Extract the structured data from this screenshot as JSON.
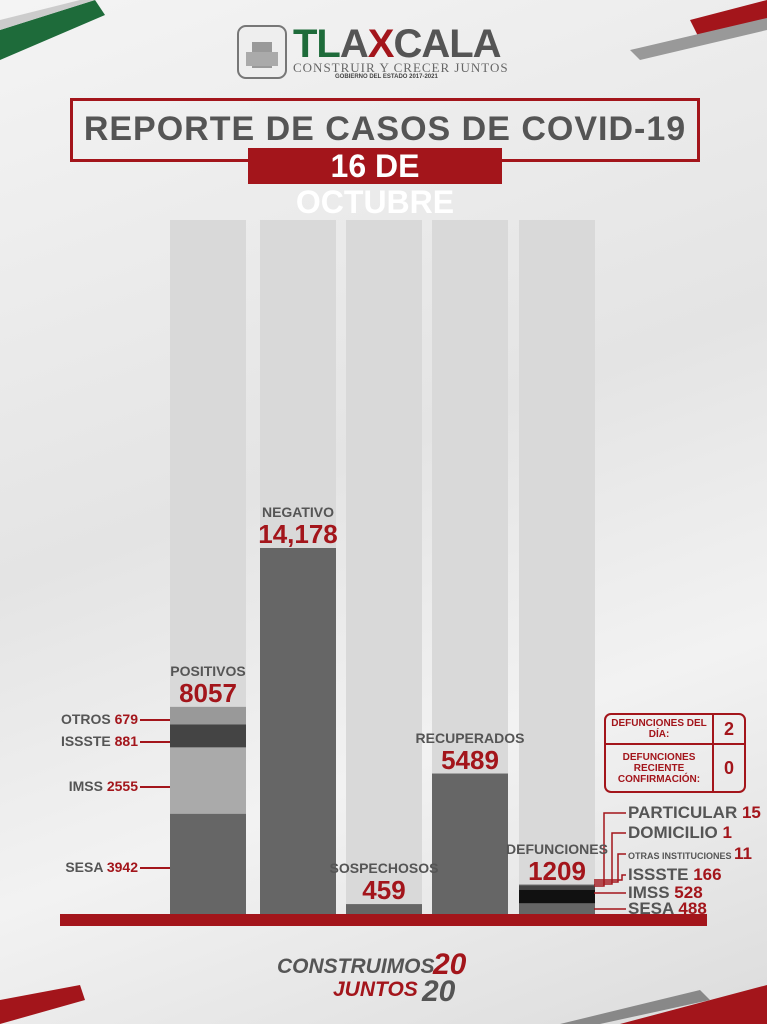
{
  "header": {
    "logo_text": "TLAXCALA",
    "logo_sub": "CONSTRUIR Y CRECER JUNTOS",
    "logo_gov": "GOBIERNO DEL ESTADO 2017-2021",
    "title": "REPORTE DE CASOS DE COVID-19",
    "date": "16 DE OCTUBRE"
  },
  "colors": {
    "accent": "#a3151b",
    "bar": "#666666",
    "track": "#d9d9d9",
    "green": "#1e6b3a"
  },
  "chart_data": {
    "type": "bar",
    "categories": [
      "POSITIVOS",
      "NEGATIVO",
      "SOSPECHOSOS",
      "RECUPERADOS",
      "DEFUNCIONES"
    ],
    "values": [
      8057,
      14178,
      459,
      5489,
      1209
    ],
    "value_labels": [
      "8057",
      "14,178",
      "459",
      "5489",
      "1209"
    ],
    "stacks": {
      "POSITIVOS": [
        {
          "name": "SESA",
          "value": 3942,
          "color": "#666666"
        },
        {
          "name": "IMSS",
          "value": 2555,
          "color": "#aaaaaa"
        },
        {
          "name": "ISSSTE",
          "value": 881,
          "color": "#444444"
        },
        {
          "name": "OTROS",
          "value": 679,
          "color": "#999999"
        }
      ],
      "DEFUNCIONES": [
        {
          "name": "SESA",
          "value": 488,
          "color": "#666666"
        },
        {
          "name": "IMSS",
          "value": 528,
          "color": "#111111"
        },
        {
          "name": "ISSSTE",
          "value": 166,
          "color": "#444444"
        },
        {
          "name": "OTRAS INSTITUCIONES",
          "value": 11,
          "color": "#555555"
        },
        {
          "name": "DOMICILIO",
          "value": 1,
          "color": "#555555"
        },
        {
          "name": "PARTICULAR",
          "value": 15,
          "color": "#555555"
        }
      ]
    },
    "ylim": [
      0,
      14178
    ],
    "grid": false
  },
  "positivos_breakdown": [
    {
      "name": "OTROS",
      "value": "679"
    },
    {
      "name": "ISSSTE",
      "value": "881"
    },
    {
      "name": "IMSS",
      "value": "2555"
    },
    {
      "name": "SESA",
      "value": "3942"
    }
  ],
  "defunciones_breakdown": [
    {
      "name": "PARTICULAR",
      "value": "15"
    },
    {
      "name": "DOMICILIO",
      "value": "1"
    },
    {
      "name": "OTRAS INSTITUCIONES",
      "value": "11"
    },
    {
      "name": "ISSSTE",
      "value": "166"
    },
    {
      "name": "IMSS",
      "value": "528"
    },
    {
      "name": "SESA",
      "value": "488"
    }
  ],
  "def_box": {
    "day_label": "DEFUNCIONES DEL DÍA:",
    "day_value": "2",
    "recent_label": "DEFUNCIONES RECIENTE CONFIRMACIÓN:",
    "recent_value": "0"
  },
  "footer": {
    "line1": "CONSTRUIMOS",
    "line2": "JUNTOS",
    "year1": "20",
    "year2": "20"
  }
}
